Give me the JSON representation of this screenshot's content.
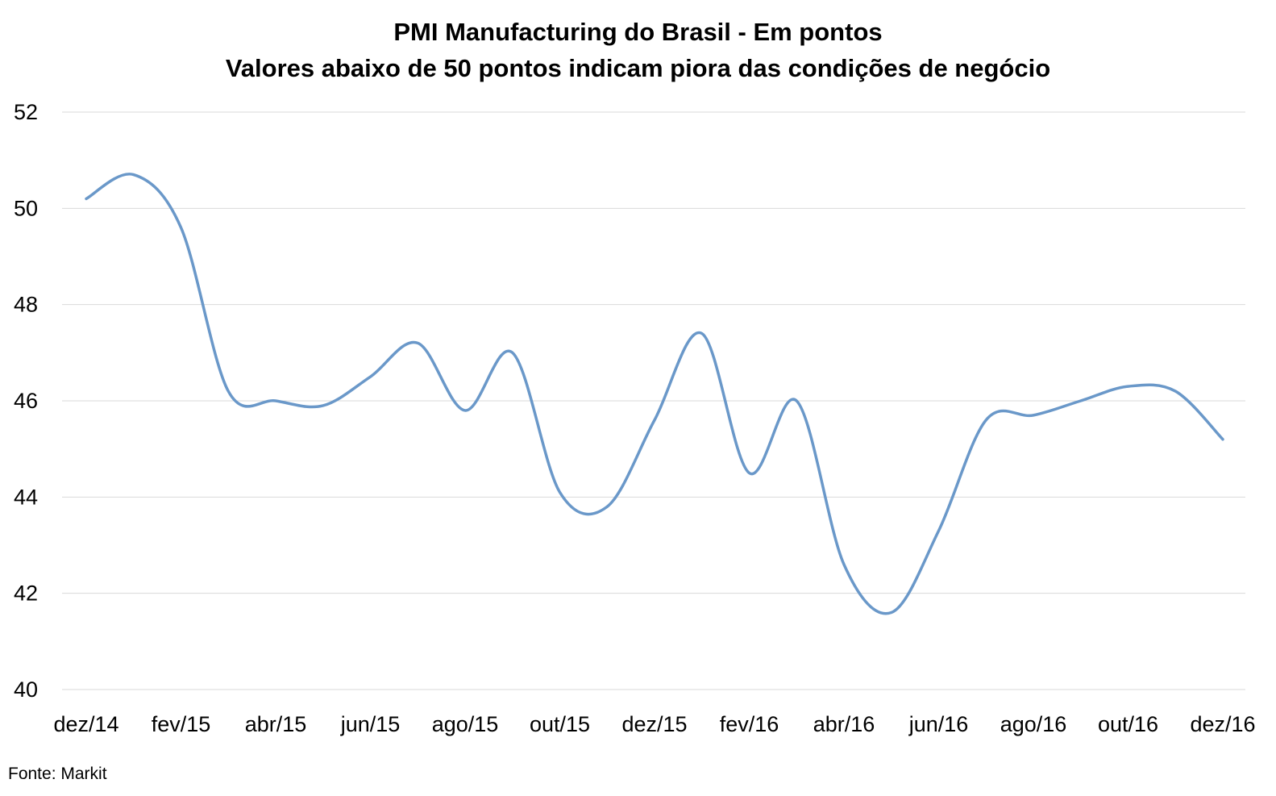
{
  "chart_data": {
    "type": "line",
    "title": "PMI Manufacturing do Brasil - Em pontos",
    "subtitle": "Valores abaixo de 50 pontos indicam piora das condições de negócio",
    "source": "Fonte: Markit",
    "xlabel": "",
    "ylabel": "",
    "ylim": [
      40,
      52
    ],
    "yticks": [
      40,
      42,
      44,
      46,
      48,
      50,
      52
    ],
    "grid": true,
    "legend": "none",
    "x_tick_labels": [
      "dez/14",
      "fev/15",
      "abr/15",
      "jun/15",
      "ago/15",
      "out/15",
      "dez/15",
      "fev/16",
      "abr/16",
      "jun/16",
      "ago/16",
      "out/16",
      "dez/16"
    ],
    "x": [
      "dez/14",
      "jan/15",
      "fev/15",
      "mar/15",
      "abr/15",
      "mai/15",
      "jun/15",
      "jul/15",
      "ago/15",
      "set/15",
      "out/15",
      "nov/15",
      "dez/15",
      "jan/16",
      "fev/16",
      "mar/16",
      "abr/16",
      "mai/16",
      "jun/16",
      "jul/16",
      "ago/16",
      "set/16",
      "out/16",
      "nov/16",
      "dez/16"
    ],
    "series": [
      {
        "values": [
          50.2,
          50.7,
          49.6,
          46.2,
          46.0,
          45.9,
          46.5,
          47.2,
          45.8,
          47.0,
          44.1,
          43.8,
          45.6,
          47.4,
          44.5,
          46.0,
          42.6,
          41.6,
          43.3,
          45.6,
          45.7,
          46.0,
          46.3,
          46.2,
          45.2
        ],
        "color": "#6a98c9"
      }
    ],
    "colors": {
      "line": "#6a98c9",
      "grid": "#d9d9d9",
      "text": "#000000"
    }
  }
}
